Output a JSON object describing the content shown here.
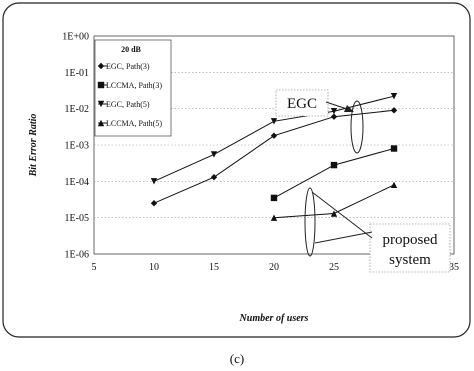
{
  "chart_data": {
    "type": "line",
    "title": "",
    "xlabel": "Number of users",
    "ylabel": "Bit Error Ratio",
    "xlim": [
      5,
      35
    ],
    "ylim": [
      1e-06,
      1
    ],
    "yscale": "log",
    "grid": true,
    "x_ticks": [
      "5",
      "10",
      "15",
      "20",
      "25",
      "30",
      "35"
    ],
    "y_ticks": [
      "1E-06",
      "1E-05",
      "1E-04",
      "1E-03",
      "1E-02",
      "1E-01",
      "1E+00"
    ],
    "legend_title": "20 dB",
    "legend_position": "top-left",
    "series": [
      {
        "name": "EGC, Path(3)",
        "marker": "diamond",
        "x": [
          10,
          15,
          20,
          25,
          30
        ],
        "y": [
          2.5e-05,
          0.00013,
          0.0018,
          0.006,
          0.009
        ]
      },
      {
        "name": "LCCMA, Path(3)",
        "marker": "square",
        "x": [
          20,
          25,
          30
        ],
        "y": [
          3.5e-05,
          0.00028,
          0.0008
        ]
      },
      {
        "name": "EGC, Path(5)",
        "marker": "triangle-down",
        "x": [
          10,
          15,
          20,
          25,
          30
        ],
        "y": [
          0.0001,
          0.00055,
          0.0045,
          0.0085,
          0.022
        ]
      },
      {
        "name": "LCCMA, Path(5)",
        "marker": "triangle-up",
        "x": [
          20,
          25,
          30
        ],
        "y": [
          1e-05,
          1.3e-05,
          8e-05
        ]
      }
    ],
    "annotations": [
      {
        "text": "EGC",
        "target": "EGC curves at 27 users"
      },
      {
        "text": "proposed\nsystem",
        "target": "LCCMA curves at 22 users"
      }
    ],
    "caption": "(c)"
  }
}
